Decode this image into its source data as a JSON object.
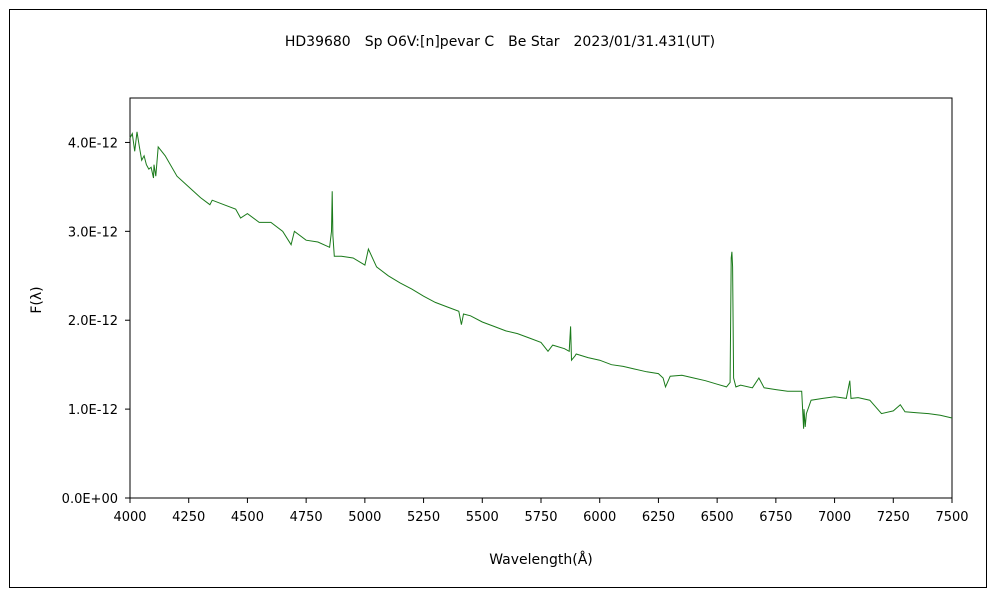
{
  "chart_data": {
    "type": "line",
    "title": "HD39680　Sp O6V:[n]pevar C　Be Star　2023/01/31.431(UT)",
    "xlabel": "Wavelength(Å)",
    "ylabel": "F(λ)",
    "xlim": [
      4000,
      7500
    ],
    "ylim": [
      0,
      4.5e-12
    ],
    "xticks": [
      4000,
      4250,
      4500,
      4750,
      5000,
      5250,
      5500,
      5750,
      6000,
      6250,
      6500,
      6750,
      7000,
      7250,
      7500
    ],
    "xtick_labels": [
      "4000",
      "4250",
      "4500",
      "4750",
      "5000",
      "5250",
      "5500",
      "5750",
      "6000",
      "6250",
      "6500",
      "6750",
      "7000",
      "7250",
      "7500"
    ],
    "yticks": [
      0,
      1e-12,
      2e-12,
      3e-12,
      4e-12
    ],
    "ytick_labels": [
      "0.0E+00",
      "1.0E-12",
      "2.0E-12",
      "3.0E-12",
      "4.0E-12"
    ],
    "grid": false,
    "legend": "none",
    "line_color": "#1a7a1a",
    "series": [
      {
        "x": [
          4000,
          4010,
          4020,
          4030,
          4040,
          4050,
          4060,
          4070,
          4080,
          4090,
          4100,
          4102,
          4110,
          4120,
          4150,
          4200,
          4250,
          4300,
          4340,
          4350,
          4400,
          4450,
          4471,
          4500,
          4550,
          4600,
          4650,
          4686,
          4700,
          4750,
          4800,
          4850,
          4858,
          4861,
          4864,
          4870,
          4900,
          4950,
          5000,
          5015,
          5050,
          5100,
          5150,
          5200,
          5250,
          5300,
          5350,
          5400,
          5411,
          5420,
          5450,
          5500,
          5550,
          5600,
          5650,
          5700,
          5750,
          5780,
          5800,
          5850,
          5870,
          5876,
          5880,
          5895,
          5900,
          5950,
          6000,
          6050,
          6100,
          6150,
          6200,
          6250,
          6270,
          6280,
          6300,
          6350,
          6400,
          6450,
          6500,
          6540,
          6555,
          6560,
          6563,
          6566,
          6570,
          6580,
          6600,
          6650,
          6678,
          6700,
          6750,
          6800,
          6860,
          6868,
          6870,
          6875,
          6880,
          6900,
          6950,
          7000,
          7050,
          7065,
          7070,
          7100,
          7150,
          7200,
          7250,
          7280,
          7300,
          7350,
          7400,
          7450,
          7500
        ],
        "y": [
          4.05e-12,
          4.1e-12,
          3.9e-12,
          4.12e-12,
          3.95e-12,
          3.8e-12,
          3.85e-12,
          3.75e-12,
          3.7e-12,
          3.72e-12,
          3.6e-12,
          3.75e-12,
          3.62e-12,
          3.95e-12,
          3.85e-12,
          3.62e-12,
          3.5e-12,
          3.38e-12,
          3.3e-12,
          3.35e-12,
          3.3e-12,
          3.25e-12,
          3.15e-12,
          3.2e-12,
          3.1e-12,
          3.1e-12,
          3e-12,
          2.85e-12,
          3e-12,
          2.9e-12,
          2.88e-12,
          2.82e-12,
          3e-12,
          3.45e-12,
          2.95e-12,
          2.72e-12,
          2.72e-12,
          2.7e-12,
          2.62e-12,
          2.8e-12,
          2.6e-12,
          2.5e-12,
          2.42e-12,
          2.35e-12,
          2.27e-12,
          2.2e-12,
          2.15e-12,
          2.1e-12,
          1.95e-12,
          2.07e-12,
          2.05e-12,
          1.98e-12,
          1.93e-12,
          1.88e-12,
          1.85e-12,
          1.8e-12,
          1.75e-12,
          1.65e-12,
          1.72e-12,
          1.68e-12,
          1.65e-12,
          1.93e-12,
          1.55e-12,
          1.6e-12,
          1.62e-12,
          1.58e-12,
          1.55e-12,
          1.5e-12,
          1.48e-12,
          1.45e-12,
          1.42e-12,
          1.4e-12,
          1.35e-12,
          1.25e-12,
          1.37e-12,
          1.38e-12,
          1.35e-12,
          1.32e-12,
          1.28e-12,
          1.25e-12,
          1.3e-12,
          2.7e-12,
          2.77e-12,
          2.6e-12,
          1.35e-12,
          1.25e-12,
          1.27e-12,
          1.24e-12,
          1.35e-12,
          1.24e-12,
          1.22e-12,
          1.2e-12,
          1.2e-12,
          7.8e-13,
          1e-12,
          8e-13,
          9.5e-13,
          1.1e-12,
          1.12e-12,
          1.14e-12,
          1.12e-12,
          1.32e-12,
          1.12e-12,
          1.13e-12,
          1.1e-12,
          9.5e-13,
          9.8e-13,
          1.05e-12,
          9.7e-13,
          9.6e-13,
          9.5e-13,
          9.3e-13,
          9e-13
        ]
      }
    ]
  }
}
